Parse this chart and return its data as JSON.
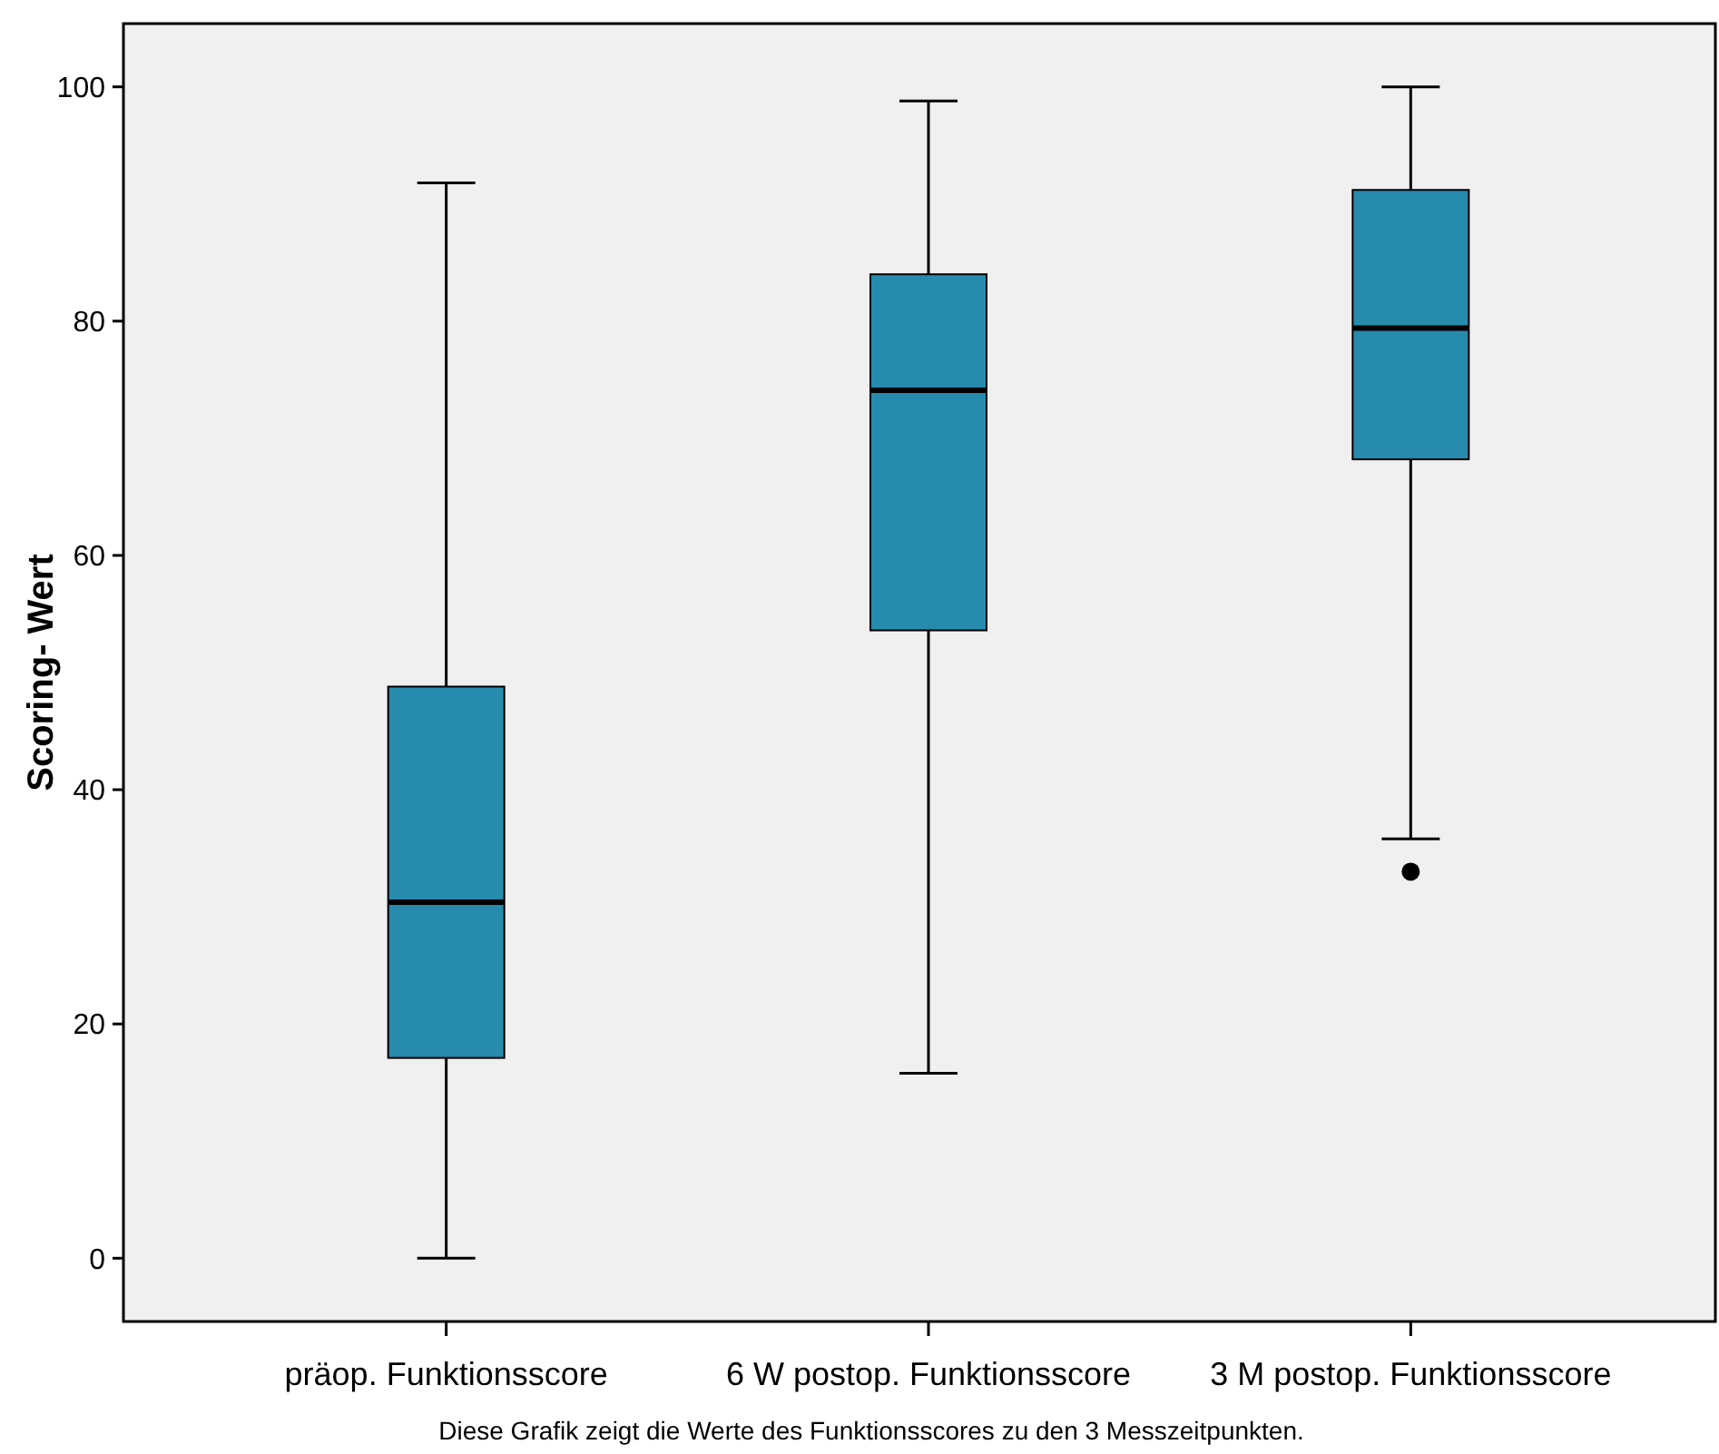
{
  "chart_data": {
    "type": "box",
    "ylabel": "Scoring- Wert",
    "categories": [
      "präop. Funktionsscore",
      "6 W postop. Funktionsscore",
      "3 M postop. Funktionsscore"
    ],
    "boxes": [
      {
        "low": 0,
        "q1": 17.1,
        "median": 30.4,
        "q3": 48.8,
        "high": 91.8
      },
      {
        "low": 15.8,
        "q1": 53.6,
        "median": 74.1,
        "q3": 84.0,
        "high": 98.8
      },
      {
        "low": 35.8,
        "q1": 68.2,
        "median": 79.4,
        "q3": 91.2,
        "high": 100,
        "outliers": [
          33
        ]
      }
    ],
    "color": "#268bad",
    "ylim": [
      -5.4,
      105.4
    ],
    "yticks": [
      0,
      20,
      40,
      60,
      80,
      100
    ],
    "grid": false,
    "annotations": [
      "Diese Grafik zeigt die Werte des Funktionsscores zu den 3 Messzeitpunkten."
    ]
  }
}
